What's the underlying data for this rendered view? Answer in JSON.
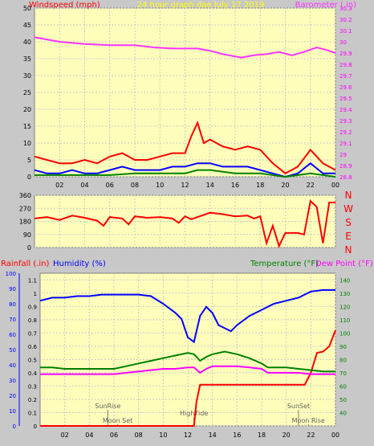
{
  "chart_data": [
    {
      "type": "line",
      "name": "wind-barometer",
      "title": "24 hour graph dae  July 17 2019",
      "left_label": "Windspeed (mph)",
      "right_label": "Barometer (.in)",
      "x_ticks": [
        "02",
        "04",
        "06",
        "08",
        "10",
        "12",
        "14",
        "16",
        "18",
        "20",
        "22",
        "00"
      ],
      "ylim_left": [
        0,
        50
      ],
      "yticks_left": [
        "0",
        "5",
        "10",
        "15",
        "20",
        "25",
        "30",
        "35",
        "40",
        "45",
        "50"
      ],
      "ylim_right": [
        28.8,
        30.3
      ],
      "yticks_right": [
        "28.8",
        "28.9",
        "29",
        "29.1",
        "29.2",
        "29.3",
        "29.4",
        "29.5",
        "29.6",
        "29.7",
        "29.8",
        "29.9",
        "30",
        "30.1",
        "30.2",
        "30.3"
      ],
      "series": [
        {
          "role": "barometer",
          "color": "#ff33ff",
          "x": [
            0,
            2,
            4,
            6,
            8,
            9.5,
            11,
            12,
            13,
            14,
            15,
            16.5,
            17.5,
            18.5,
            19.5,
            20.5,
            21.5,
            22.5,
            23.2,
            24
          ],
          "y": [
            30.04,
            30.0,
            29.98,
            29.97,
            29.97,
            29.95,
            29.94,
            29.94,
            29.94,
            29.92,
            29.89,
            29.86,
            29.88,
            29.89,
            29.91,
            29.88,
            29.91,
            29.95,
            29.93,
            29.9
          ]
        },
        {
          "role": "windspeed",
          "color": "#ff0000",
          "x": [
            0,
            1,
            2,
            3,
            4,
            5,
            6,
            7,
            8,
            9,
            10,
            11,
            12,
            12.5,
            13,
            13.5,
            14,
            15,
            16,
            17,
            18,
            19,
            20,
            21,
            22,
            22.5,
            23,
            23.5,
            24
          ],
          "y": [
            6,
            5,
            4,
            4,
            5,
            4,
            6,
            7,
            5,
            5,
            6,
            7,
            7,
            12,
            16,
            10,
            11,
            9,
            8,
            9,
            8,
            4,
            1,
            3,
            8,
            6,
            4,
            3,
            2
          ]
        },
        {
          "role": "wind-gust",
          "color": "#0000ff",
          "x": [
            0,
            1,
            2,
            3,
            4,
            5,
            6,
            7,
            8,
            9,
            10,
            11,
            12,
            13,
            14,
            15,
            16,
            17,
            18,
            19,
            20,
            21,
            22,
            23,
            24
          ],
          "y": [
            2,
            1,
            1,
            2,
            1,
            1,
            2,
            3,
            2,
            2,
            2,
            3,
            3,
            4,
            4,
            3,
            3,
            3,
            2,
            1,
            0,
            1,
            4,
            1,
            1
          ]
        },
        {
          "role": "wind-average",
          "color": "#008000",
          "x": [
            0,
            2,
            4,
            6,
            8,
            10,
            12,
            13,
            14,
            16,
            18,
            20,
            22,
            24
          ],
          "y": [
            0.5,
            0.5,
            0.5,
            0.5,
            1,
            1,
            1,
            2,
            2,
            1,
            1,
            0,
            1,
            0
          ]
        }
      ]
    },
    {
      "type": "line",
      "name": "wind-direction",
      "x_ticks": [
        "02",
        "04",
        "06",
        "08",
        "10",
        "12",
        "14",
        "16",
        "18",
        "20",
        "22",
        "00"
      ],
      "ylim_left": [
        0,
        360
      ],
      "yticks_left": [
        "0",
        "90",
        "180",
        "270",
        "360"
      ],
      "right_label": "NWSEN",
      "series": [
        {
          "role": "wind-direction",
          "color": "#ff0000",
          "x": [
            0,
            1,
            2,
            3,
            4,
            5,
            5.5,
            6,
            7,
            7.5,
            8,
            9,
            10,
            11,
            11.5,
            12,
            12.5,
            13,
            14,
            15,
            16,
            17,
            17.5,
            18,
            18.5,
            19,
            19.5,
            20,
            20.5,
            21,
            21.5,
            22,
            22.5,
            23,
            23.5,
            24
          ],
          "y": [
            200,
            210,
            190,
            220,
            205,
            185,
            150,
            210,
            200,
            160,
            215,
            205,
            210,
            200,
            170,
            215,
            195,
            210,
            240,
            230,
            215,
            220,
            200,
            215,
            30,
            150,
            10,
            100,
            100,
            100,
            90,
            320,
            280,
            30,
            310,
            310
          ]
        }
      ]
    },
    {
      "type": "line",
      "name": "temp-humidity-rain",
      "rain_label": "Rainfall (.in)",
      "humidity_label": "Humidity (%)",
      "temp_label": "Temperature (°F)",
      "dew_label": "Dew Point (°F)",
      "x_ticks": [
        "02",
        "04",
        "06",
        "08",
        "10",
        "12",
        "14",
        "16",
        "18",
        "20",
        "22",
        "00"
      ],
      "ylim_humidity": [
        0,
        100
      ],
      "yticks_humidity": [
        "0",
        "10",
        "20",
        "30",
        "40",
        "50",
        "60",
        "70",
        "80",
        "90",
        "100"
      ],
      "ylim_rain": [
        0,
        1.15
      ],
      "yticks_rain": [
        "0",
        "0.1",
        "0.2",
        "0.3",
        "0.4",
        "0.5",
        "0.6",
        "0.7",
        "0.8",
        "0.9",
        "1",
        "1.1"
      ],
      "ylim_temp": [
        30,
        145
      ],
      "yticks_temp": [
        "40",
        "50",
        "60",
        "70",
        "80",
        "90",
        "100",
        "110",
        "120",
        "130",
        "140"
      ],
      "annotations": [
        {
          "text": "SunRise",
          "x": 5.5,
          "level": "upper"
        },
        {
          "text": "Moon Set",
          "x": 6.3,
          "level": "lower"
        },
        {
          "text": "HighTide",
          "x": 12.5,
          "level": "middle"
        },
        {
          "text": "SunSet",
          "x": 21,
          "level": "upper"
        },
        {
          "text": "Moon Rise",
          "x": 21.8,
          "level": "lower"
        }
      ],
      "series": [
        {
          "role": "humidity",
          "color": "#0000ff",
          "x": [
            0,
            1,
            2,
            3,
            4,
            5,
            6,
            7,
            8,
            9,
            10,
            11,
            11.5,
            12,
            12.5,
            13,
            13.5,
            14,
            14.5,
            15,
            15.5,
            16,
            17,
            18,
            19,
            20,
            21,
            22,
            23,
            24
          ],
          "y": [
            82,
            84,
            84,
            85,
            85,
            86,
            86,
            86,
            86,
            85,
            80,
            74,
            70,
            58,
            55,
            72,
            78,
            74,
            66,
            64,
            62,
            66,
            72,
            76,
            80,
            82,
            84,
            88,
            89,
            89
          ]
        },
        {
          "role": "rainfall",
          "color": "#ff0000",
          "x": [
            0,
            12.5,
            12.7,
            13,
            14,
            16,
            18,
            20,
            21,
            21.5,
            22,
            22.5,
            23,
            23.5,
            24
          ],
          "y": [
            0,
            0,
            0.18,
            0.31,
            0.31,
            0.31,
            0.31,
            0.31,
            0.31,
            0.31,
            0.4,
            0.55,
            0.56,
            0.6,
            0.72
          ]
        },
        {
          "role": "temperature",
          "color": "#008000",
          "x": [
            0,
            1,
            2,
            3,
            4,
            5,
            6,
            7,
            8,
            9,
            10,
            11,
            12,
            12.5,
            13,
            13.5,
            14,
            15,
            16,
            17,
            18,
            18.5,
            19,
            20,
            21,
            22,
            23,
            24
          ],
          "y": [
            74,
            74,
            73,
            73,
            73,
            73,
            73,
            75,
            77,
            79,
            81,
            83,
            85,
            84,
            79,
            82,
            84,
            86,
            84,
            81,
            77,
            74,
            74,
            74,
            73,
            72,
            71,
            71
          ]
        },
        {
          "role": "dew-point",
          "color": "#ff00ff",
          "x": [
            0,
            1,
            2,
            3,
            4,
            5,
            6,
            7,
            8,
            9,
            10,
            11,
            12,
            12.5,
            13,
            13.5,
            14,
            15,
            16,
            17,
            18,
            18.5,
            19,
            20,
            21,
            22,
            23,
            24
          ],
          "y": [
            69,
            69,
            69,
            69,
            69,
            69,
            69,
            70,
            71,
            72,
            73,
            73,
            74,
            74,
            70,
            73,
            75,
            75,
            75,
            74,
            73,
            70,
            70,
            70,
            70,
            69,
            69,
            69
          ]
        }
      ]
    }
  ]
}
